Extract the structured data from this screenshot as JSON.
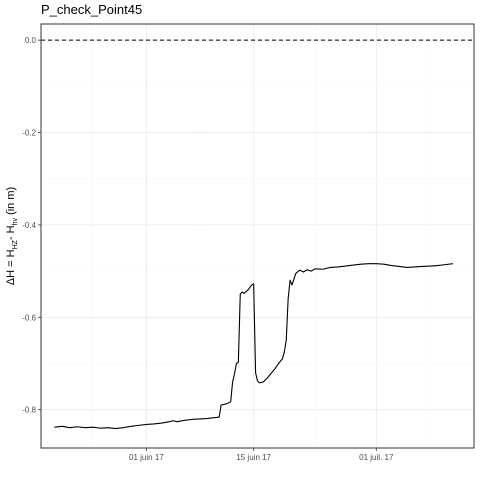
{
  "chart_data": {
    "type": "line",
    "title": "P_check_Point45",
    "ylabel_parts": [
      "ΔH = H",
      "HZ",
      "- H",
      "hv",
      " (in m)"
    ],
    "xlabel": "",
    "x_ticks": [
      {
        "date": "2017-06-01",
        "label": "01 juin 17"
      },
      {
        "date": "2017-06-15",
        "label": "15 juin 17"
      },
      {
        "date": "2017-07-01",
        "label": "01 juil. 17"
      }
    ],
    "y_ticks": [
      0.0,
      -0.2,
      -0.4,
      -0.6,
      -0.8
    ],
    "y_tick_labels": [
      "0.0",
      "-0.2",
      "-0.4",
      "-0.6",
      "-0.8"
    ],
    "xlim": [
      "2017-05-18T06:00",
      "2017-07-13T18:00"
    ],
    "ylim": [
      -0.883,
      0.035
    ],
    "grid": true,
    "reference_line": {
      "y": 0.0,
      "style": "dashed"
    },
    "series": [
      {
        "points": [
          [
            "2017-05-20T00:00",
            -0.838
          ],
          [
            "2017-05-21T00:00",
            -0.836
          ],
          [
            "2017-05-22T00:00",
            -0.839
          ],
          [
            "2017-05-23T00:00",
            -0.837
          ],
          [
            "2017-05-24T00:00",
            -0.839
          ],
          [
            "2017-05-25T00:00",
            -0.838
          ],
          [
            "2017-05-26T00:00",
            -0.84
          ],
          [
            "2017-05-27T00:00",
            -0.839
          ],
          [
            "2017-05-28T00:00",
            -0.841
          ],
          [
            "2017-05-29T00:00",
            -0.839
          ],
          [
            "2017-05-30T00:00",
            -0.836
          ],
          [
            "2017-05-31T00:00",
            -0.834
          ],
          [
            "2017-06-01T00:00",
            -0.832
          ],
          [
            "2017-06-02T00:00",
            -0.831
          ],
          [
            "2017-06-03T00:00",
            -0.829
          ],
          [
            "2017-06-04T00:00",
            -0.826
          ],
          [
            "2017-06-04T12:00",
            -0.824
          ],
          [
            "2017-06-05T00:00",
            -0.826
          ],
          [
            "2017-06-06T00:00",
            -0.823
          ],
          [
            "2017-06-07T00:00",
            -0.821
          ],
          [
            "2017-06-08T00:00",
            -0.82
          ],
          [
            "2017-06-09T00:00",
            -0.819
          ],
          [
            "2017-06-10T00:00",
            -0.817
          ],
          [
            "2017-06-10T12:00",
            -0.816
          ],
          [
            "2017-06-10T18:00",
            -0.79
          ],
          [
            "2017-06-11T12:00",
            -0.787
          ],
          [
            "2017-06-12T00:00",
            -0.783
          ],
          [
            "2017-06-12T06:00",
            -0.74
          ],
          [
            "2017-06-12T12:00",
            -0.722
          ],
          [
            "2017-06-12T18:00",
            -0.7
          ],
          [
            "2017-06-13T00:00",
            -0.698
          ],
          [
            "2017-06-13T06:00",
            -0.55
          ],
          [
            "2017-06-13T12:00",
            -0.545
          ],
          [
            "2017-06-13T18:00",
            -0.548
          ],
          [
            "2017-06-14T06:00",
            -0.541
          ],
          [
            "2017-06-14T18:00",
            -0.53
          ],
          [
            "2017-06-15T00:00",
            -0.528
          ],
          [
            "2017-06-15T06:00",
            -0.72
          ],
          [
            "2017-06-15T12:00",
            -0.738
          ],
          [
            "2017-06-15T18:00",
            -0.742
          ],
          [
            "2017-06-16T06:00",
            -0.74
          ],
          [
            "2017-06-16T18:00",
            -0.732
          ],
          [
            "2017-06-17T06:00",
            -0.722
          ],
          [
            "2017-06-17T18:00",
            -0.712
          ],
          [
            "2017-06-18T06:00",
            -0.7
          ],
          [
            "2017-06-18T18:00",
            -0.69
          ],
          [
            "2017-06-19T00:00",
            -0.675
          ],
          [
            "2017-06-19T06:00",
            -0.65
          ],
          [
            "2017-06-19T12:00",
            -0.56
          ],
          [
            "2017-06-19T18:00",
            -0.52
          ],
          [
            "2017-06-20T00:00",
            -0.53
          ],
          [
            "2017-06-20T12:00",
            -0.505
          ],
          [
            "2017-06-21T00:00",
            -0.498
          ],
          [
            "2017-06-21T12:00",
            -0.502
          ],
          [
            "2017-06-22T00:00",
            -0.497
          ],
          [
            "2017-06-22T12:00",
            -0.5
          ],
          [
            "2017-06-23T00:00",
            -0.495
          ],
          [
            "2017-06-24T00:00",
            -0.496
          ],
          [
            "2017-06-25T00:00",
            -0.492
          ],
          [
            "2017-06-26T00:00",
            -0.491
          ],
          [
            "2017-06-27T00:00",
            -0.489
          ],
          [
            "2017-06-28T00:00",
            -0.487
          ],
          [
            "2017-06-29T00:00",
            -0.485
          ],
          [
            "2017-06-30T00:00",
            -0.484
          ],
          [
            "2017-07-01T00:00",
            -0.484
          ],
          [
            "2017-07-02T00:00",
            -0.485
          ],
          [
            "2017-07-03T00:00",
            -0.488
          ],
          [
            "2017-07-04T00:00",
            -0.49
          ],
          [
            "2017-07-05T00:00",
            -0.492
          ],
          [
            "2017-07-06T00:00",
            -0.491
          ],
          [
            "2017-07-07T00:00",
            -0.49
          ],
          [
            "2017-07-08T00:00",
            -0.489
          ],
          [
            "2017-07-09T00:00",
            -0.488
          ],
          [
            "2017-07-10T00:00",
            -0.486
          ],
          [
            "2017-07-11T00:00",
            -0.484
          ]
        ]
      }
    ]
  }
}
